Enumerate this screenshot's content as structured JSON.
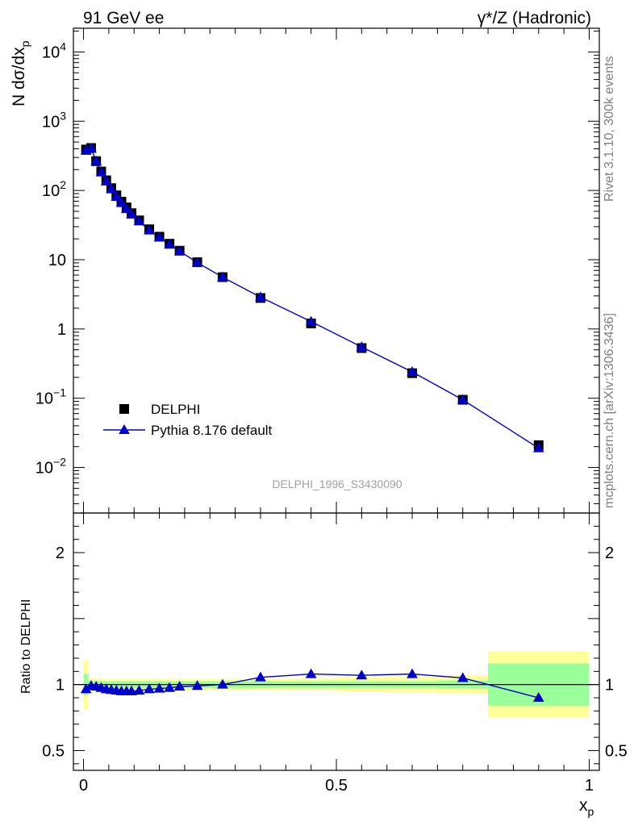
{
  "header": {
    "left_title": "91 GeV ee",
    "right_title": "γ*/Z (Hadronic)"
  },
  "side_text": {
    "rivet": "Rivet 3.1.10,  300k events",
    "site": "mcplots.cern.ch [arXiv:1306.3436]"
  },
  "analysis_label": "DELPHI_1996_S3430090",
  "chart_data": [
    {
      "panel": "main",
      "type": "scatter",
      "yscale": "log",
      "ylabel": "N dσ/dx_p",
      "ylabel_parts": {
        "main": "N dσ/dx",
        "sub": "p"
      },
      "ylim": [
        0.0022,
        22000
      ],
      "xlim": [
        -0.02,
        1.02
      ],
      "y_ticks": [
        {
          "value": 10000,
          "base": "10",
          "exp": "4"
        },
        {
          "value": 1000,
          "base": "10",
          "exp": "3"
        },
        {
          "value": 100,
          "base": "10",
          "exp": "2"
        },
        {
          "value": 10,
          "base": "10",
          "exp": ""
        },
        {
          "value": 1,
          "base": "1",
          "exp": ""
        },
        {
          "value": 0.1,
          "base": "10",
          "exp": "−1"
        },
        {
          "value": 0.01,
          "base": "10",
          "exp": "−2"
        }
      ],
      "legend": {
        "position": "bottom-left",
        "entries": [
          {
            "label": "DELPHI",
            "marker": "square",
            "color": "#000000"
          },
          {
            "label": "Pythia 8.176 default",
            "marker": "triangle",
            "color": "#0000cc"
          }
        ]
      },
      "x": [
        0.005,
        0.015,
        0.025,
        0.035,
        0.045,
        0.055,
        0.065,
        0.075,
        0.085,
        0.095,
        0.11,
        0.13,
        0.15,
        0.17,
        0.19,
        0.225,
        0.275,
        0.35,
        0.45,
        0.55,
        0.65,
        0.75,
        0.9
      ],
      "series": [
        {
          "name": "DELPHI",
          "color": "#000000",
          "marker": "square",
          "values": [
            390,
            410,
            265,
            188,
            140,
            108,
            85,
            69,
            57,
            47,
            37,
            27.5,
            21.5,
            17,
            13.5,
            9.2,
            5.6,
            2.8,
            1.2,
            0.53,
            0.23,
            0.095,
            0.021
          ]
        },
        {
          "name": "Pythia 8.176 default",
          "color": "#0000cc",
          "marker": "triangle",
          "values": [
            375,
            405,
            265,
            183,
            135,
            104,
            81,
            66,
            54,
            45,
            36,
            26.5,
            20.9,
            16.6,
            13.3,
            9.1,
            5.6,
            2.88,
            1.28,
            0.55,
            0.24,
            0.095,
            0.019
          ]
        }
      ]
    },
    {
      "panel": "ratio",
      "type": "line",
      "ylabel": "Ratio to DELPHI",
      "ylim": [
        0.35,
        2.3
      ],
      "xlim": [
        -0.02,
        1.02
      ],
      "xlabel": "x_p",
      "xlabel_parts": {
        "main": "x",
        "sub": "p"
      },
      "x_ticks": [
        {
          "value": 0,
          "label": "0"
        },
        {
          "value": 0.5,
          "label": "0.5"
        },
        {
          "value": 1,
          "label": "1"
        }
      ],
      "y_ticks": [
        {
          "value": 0.5,
          "label": "0.5"
        },
        {
          "value": 1,
          "label": "1"
        },
        {
          "value": 2,
          "label": "2"
        }
      ],
      "bands": {
        "edges": [
          0.0,
          0.01,
          0.02,
          0.03,
          0.04,
          0.05,
          0.06,
          0.07,
          0.08,
          0.09,
          0.1,
          0.12,
          0.14,
          0.16,
          0.18,
          0.2,
          0.25,
          0.3,
          0.4,
          0.5,
          0.6,
          0.7,
          0.8,
          1.0
        ],
        "green": [
          0.08,
          0.03,
          0.025,
          0.025,
          0.025,
          0.025,
          0.025,
          0.025,
          0.025,
          0.025,
          0.025,
          0.025,
          0.025,
          0.025,
          0.025,
          0.025,
          0.025,
          0.025,
          0.025,
          0.025,
          0.025,
          0.03,
          0.16
        ],
        "yellow": [
          0.19,
          0.05,
          0.04,
          0.04,
          0.04,
          0.04,
          0.04,
          0.04,
          0.04,
          0.04,
          0.04,
          0.04,
          0.04,
          0.04,
          0.04,
          0.04,
          0.04,
          0.04,
          0.045,
          0.055,
          0.06,
          0.07,
          0.25
        ]
      },
      "series": [
        {
          "name": "Pythia 8.176 default",
          "color": "#0000cc",
          "marker": "triangle",
          "x": [
            0.005,
            0.015,
            0.025,
            0.035,
            0.045,
            0.055,
            0.065,
            0.075,
            0.085,
            0.095,
            0.11,
            0.13,
            0.15,
            0.17,
            0.19,
            0.225,
            0.275,
            0.35,
            0.45,
            0.55,
            0.65,
            0.75,
            0.9
          ],
          "values": [
            0.965,
            0.99,
            0.985,
            0.975,
            0.965,
            0.96,
            0.955,
            0.95,
            0.95,
            0.95,
            0.955,
            0.965,
            0.97,
            0.975,
            0.985,
            0.99,
            1.0,
            1.055,
            1.08,
            1.07,
            1.08,
            1.05,
            0.9
          ]
        }
      ]
    }
  ]
}
